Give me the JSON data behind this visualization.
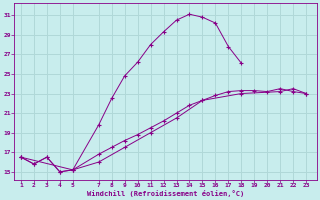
{
  "xlabel": "Windchill (Refroidissement éolien,°C)",
  "background_color": "#c8eded",
  "grid_color": "#b0d8d8",
  "line_color": "#880088",
  "yticks": [
    15,
    17,
    19,
    21,
    23,
    25,
    27,
    29,
    31
  ],
  "xticks": [
    1,
    2,
    3,
    4,
    5,
    7,
    8,
    9,
    10,
    11,
    12,
    13,
    14,
    15,
    16,
    17,
    18,
    19,
    20,
    21,
    22,
    23
  ],
  "xlim": [
    0.5,
    23.8
  ],
  "ylim": [
    14.2,
    32.2
  ],
  "curve1_x": [
    1,
    2,
    3,
    4,
    5,
    7,
    8,
    9,
    10,
    11,
    12,
    13,
    14,
    15,
    16,
    17,
    18
  ],
  "curve1_y": [
    16.5,
    15.8,
    16.5,
    15.0,
    15.2,
    19.8,
    22.5,
    24.8,
    26.2,
    28.0,
    29.3,
    30.5,
    31.1,
    30.8,
    30.2,
    27.8,
    26.1
  ],
  "curve2_x": [
    1,
    2,
    3,
    4,
    5,
    7,
    8,
    9,
    10,
    11,
    12,
    13,
    14,
    15,
    16,
    17,
    18,
    19,
    20,
    21,
    22,
    23
  ],
  "curve2_y": [
    16.5,
    15.8,
    16.5,
    15.0,
    15.2,
    16.8,
    17.5,
    18.2,
    18.8,
    19.5,
    20.2,
    21.0,
    21.8,
    22.3,
    22.8,
    23.2,
    23.3,
    23.3,
    23.2,
    23.5,
    23.2,
    23.0
  ],
  "curve3_x": [
    1,
    5,
    7,
    9,
    11,
    13,
    15,
    18,
    21,
    22,
    23
  ],
  "curve3_y": [
    16.5,
    15.2,
    16.0,
    17.5,
    19.0,
    20.5,
    22.3,
    23.0,
    23.2,
    23.5,
    23.0
  ]
}
